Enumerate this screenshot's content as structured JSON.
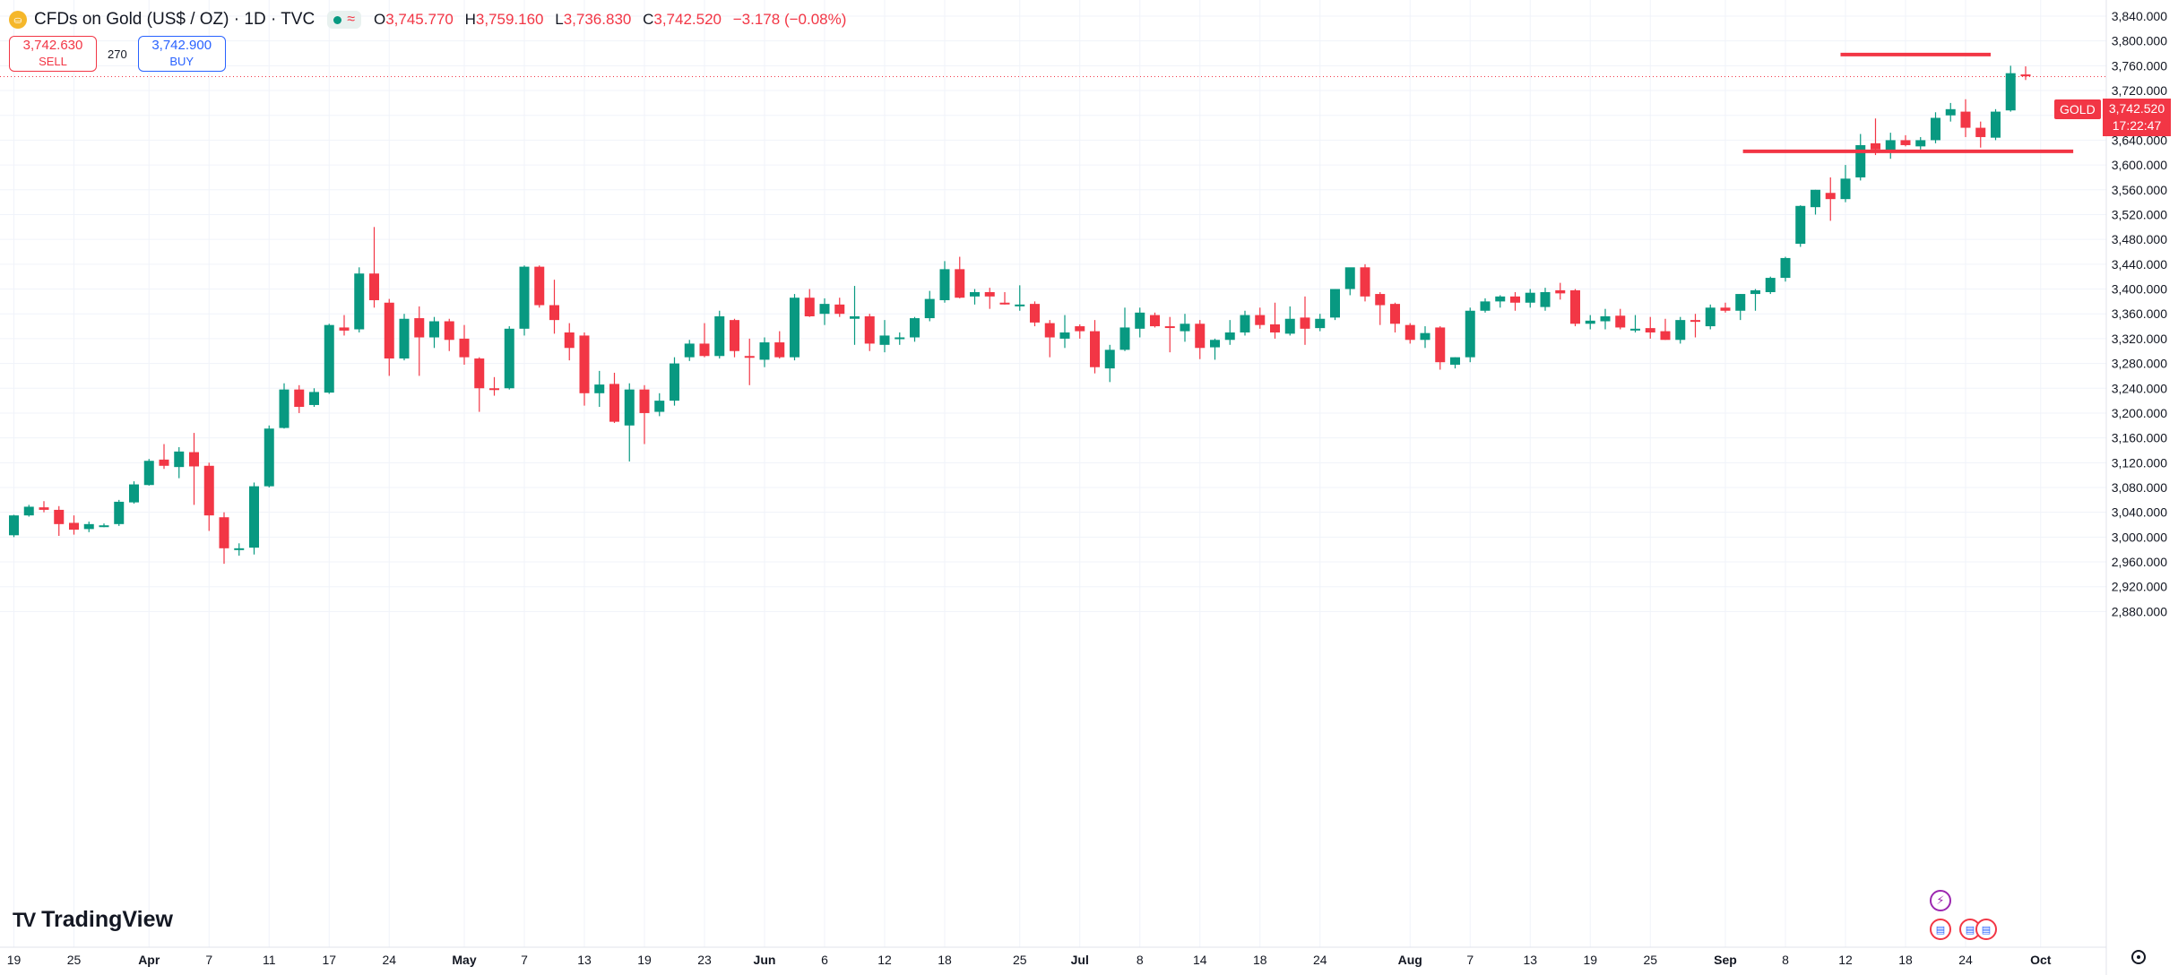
{
  "header": {
    "symbol_title": "CFDs on Gold (US$ / OZ) · 1D · TVC",
    "symbol_icon": "gold-coin-icon",
    "ohlc": {
      "o_label": "O",
      "o": "3,745.770",
      "h_label": "H",
      "h": "3,759.160",
      "l_label": "L",
      "l": "3,736.830",
      "c_label": "C",
      "c": "3,742.520",
      "change": "−3.178 (−0.08%)"
    }
  },
  "trade": {
    "sell_price": "3,742.630",
    "sell_label": "SELL",
    "spread": "270",
    "buy_price": "3,742.900",
    "buy_label": "BUY"
  },
  "price_axis": {
    "symbol_tag": "GOLD",
    "last_price": "3,742.520",
    "countdown": "17:22:47"
  },
  "branding": {
    "logo_text": "TradingView"
  },
  "colors": {
    "up": "#089981",
    "down": "#f23645",
    "accent": "#2962ff"
  },
  "chart_data": {
    "type": "candlestick",
    "title": "CFDs on Gold (US$ / OZ) · 1D · TVC",
    "ylim": [
      2880,
      3860
    ],
    "y_ticks": [
      2880,
      2920,
      2960,
      3000,
      3040,
      3080,
      3120,
      3160,
      3200,
      3240,
      3280,
      3320,
      3360,
      3400,
      3440,
      3480,
      3520,
      3560,
      3600,
      3640,
      3680,
      3720,
      3760,
      3800,
      3840
    ],
    "y_tick_labels": [
      "2,880.000",
      "2,920.000",
      "2,960.000",
      "3,000.000",
      "3,040.000",
      "3,080.000",
      "3,120.000",
      "3,160.000",
      "3,200.000",
      "3,240.000",
      "3,280.000",
      "3,320.000",
      "3,360.000",
      "3,400.000",
      "3,440.000",
      "3,480.000",
      "3,520.000",
      "3,560.000",
      "3,600.000",
      "3,640.000",
      "3,680.000",
      "3,720.000",
      "3,760.000",
      "3,800.000",
      "3,840.000"
    ],
    "x_ticks": [
      {
        "label": "19",
        "bar": 0,
        "bold": false
      },
      {
        "label": "25",
        "bar": 4,
        "bold": false
      },
      {
        "label": "Apr",
        "bar": 9,
        "bold": true
      },
      {
        "label": "7",
        "bar": 13,
        "bold": false
      },
      {
        "label": "11",
        "bar": 17,
        "bold": false
      },
      {
        "label": "17",
        "bar": 21,
        "bold": false
      },
      {
        "label": "24",
        "bar": 25,
        "bold": false
      },
      {
        "label": "May",
        "bar": 30,
        "bold": true
      },
      {
        "label": "7",
        "bar": 34,
        "bold": false
      },
      {
        "label": "13",
        "bar": 38,
        "bold": false
      },
      {
        "label": "19",
        "bar": 42,
        "bold": false
      },
      {
        "label": "23",
        "bar": 46,
        "bold": false
      },
      {
        "label": "Jun",
        "bar": 50,
        "bold": true
      },
      {
        "label": "6",
        "bar": 54,
        "bold": false
      },
      {
        "label": "12",
        "bar": 58,
        "bold": false
      },
      {
        "label": "18",
        "bar": 62,
        "bold": false
      },
      {
        "label": "25",
        "bar": 67,
        "bold": false
      },
      {
        "label": "Jul",
        "bar": 71,
        "bold": true
      },
      {
        "label": "8",
        "bar": 75,
        "bold": false
      },
      {
        "label": "14",
        "bar": 79,
        "bold": false
      },
      {
        "label": "18",
        "bar": 83,
        "bold": false
      },
      {
        "label": "24",
        "bar": 87,
        "bold": false
      },
      {
        "label": "Aug",
        "bar": 93,
        "bold": true
      },
      {
        "label": "7",
        "bar": 97,
        "bold": false
      },
      {
        "label": "13",
        "bar": 101,
        "bold": false
      },
      {
        "label": "19",
        "bar": 105,
        "bold": false
      },
      {
        "label": "25",
        "bar": 109,
        "bold": false
      },
      {
        "label": "Sep",
        "bar": 114,
        "bold": true
      },
      {
        "label": "8",
        "bar": 118,
        "bold": false
      },
      {
        "label": "12",
        "bar": 122,
        "bold": false
      },
      {
        "label": "18",
        "bar": 126,
        "bold": false
      },
      {
        "label": "24",
        "bar": 130,
        "bold": false
      },
      {
        "label": "Oct",
        "bar": 135,
        "bold": true
      }
    ],
    "candles": [
      {
        "o": 3003,
        "h": 3036,
        "l": 3000,
        "c": 3035
      },
      {
        "o": 3035,
        "h": 3052,
        "l": 3033,
        "c": 3049
      },
      {
        "o": 3048,
        "h": 3058,
        "l": 3040,
        "c": 3044
      },
      {
        "o": 3044,
        "h": 3050,
        "l": 3002,
        "c": 3021
      },
      {
        "o": 3023,
        "h": 3035,
        "l": 3004,
        "c": 3012
      },
      {
        "o": 3013,
        "h": 3025,
        "l": 3008,
        "c": 3021
      },
      {
        "o": 3019,
        "h": 3022,
        "l": 3016,
        "c": 3019
      },
      {
        "o": 3021,
        "h": 3060,
        "l": 3018,
        "c": 3057
      },
      {
        "o": 3056,
        "h": 3090,
        "l": 3054,
        "c": 3085
      },
      {
        "o": 3084,
        "h": 3126,
        "l": 3083,
        "c": 3123
      },
      {
        "o": 3125,
        "h": 3150,
        "l": 3110,
        "c": 3115
      },
      {
        "o": 3113,
        "h": 3145,
        "l": 3095,
        "c": 3138
      },
      {
        "o": 3137,
        "h": 3168,
        "l": 3052,
        "c": 3114
      },
      {
        "o": 3115,
        "h": 3120,
        "l": 3010,
        "c": 3035
      },
      {
        "o": 3032,
        "h": 3040,
        "l": 2957,
        "c": 2982
      },
      {
        "o": 2982,
        "h": 2990,
        "l": 2970,
        "c": 2982
      },
      {
        "o": 2983,
        "h": 3088,
        "l": 2972,
        "c": 3082
      },
      {
        "o": 3082,
        "h": 3180,
        "l": 3080,
        "c": 3175
      },
      {
        "o": 3176,
        "h": 3248,
        "l": 3175,
        "c": 3238
      },
      {
        "o": 3238,
        "h": 3245,
        "l": 3200,
        "c": 3210
      },
      {
        "o": 3213,
        "h": 3240,
        "l": 3210,
        "c": 3234
      },
      {
        "o": 3233,
        "h": 3344,
        "l": 3231,
        "c": 3342
      },
      {
        "o": 3338,
        "h": 3358,
        "l": 3325,
        "c": 3333
      },
      {
        "o": 3335,
        "h": 3435,
        "l": 3330,
        "c": 3425
      },
      {
        "o": 3425,
        "h": 3500,
        "l": 3370,
        "c": 3382
      },
      {
        "o": 3378,
        "h": 3384,
        "l": 3260,
        "c": 3288
      },
      {
        "o": 3288,
        "h": 3360,
        "l": 3285,
        "c": 3352
      },
      {
        "o": 3353,
        "h": 3372,
        "l": 3260,
        "c": 3322
      },
      {
        "o": 3322,
        "h": 3355,
        "l": 3305,
        "c": 3348
      },
      {
        "o": 3348,
        "h": 3352,
        "l": 3300,
        "c": 3318
      },
      {
        "o": 3320,
        "h": 3342,
        "l": 3278,
        "c": 3290
      },
      {
        "o": 3288,
        "h": 3290,
        "l": 3202,
        "c": 3240
      },
      {
        "o": 3240,
        "h": 3258,
        "l": 3228,
        "c": 3238
      },
      {
        "o": 3240,
        "h": 3340,
        "l": 3238,
        "c": 3336
      },
      {
        "o": 3336,
        "h": 3438,
        "l": 3325,
        "c": 3436
      },
      {
        "o": 3436,
        "h": 3438,
        "l": 3370,
        "c": 3374
      },
      {
        "o": 3374,
        "h": 3415,
        "l": 3328,
        "c": 3350
      },
      {
        "o": 3330,
        "h": 3345,
        "l": 3285,
        "c": 3305
      },
      {
        "o": 3325,
        "h": 3330,
        "l": 3212,
        "c": 3232
      },
      {
        "o": 3232,
        "h": 3268,
        "l": 3210,
        "c": 3246
      },
      {
        "o": 3247,
        "h": 3265,
        "l": 3184,
        "c": 3186
      },
      {
        "o": 3180,
        "h": 3248,
        "l": 3122,
        "c": 3238
      },
      {
        "o": 3238,
        "h": 3245,
        "l": 3150,
        "c": 3200
      },
      {
        "o": 3202,
        "h": 3232,
        "l": 3195,
        "c": 3220
      },
      {
        "o": 3220,
        "h": 3290,
        "l": 3212,
        "c": 3280
      },
      {
        "o": 3290,
        "h": 3318,
        "l": 3284,
        "c": 3312
      },
      {
        "o": 3312,
        "h": 3345,
        "l": 3290,
        "c": 3292
      },
      {
        "o": 3292,
        "h": 3365,
        "l": 3288,
        "c": 3356
      },
      {
        "o": 3350,
        "h": 3352,
        "l": 3290,
        "c": 3300
      },
      {
        "o": 3292,
        "h": 3320,
        "l": 3245,
        "c": 3290
      },
      {
        "o": 3286,
        "h": 3322,
        "l": 3274,
        "c": 3314
      },
      {
        "o": 3314,
        "h": 3332,
        "l": 3288,
        "c": 3290
      },
      {
        "o": 3290,
        "h": 3392,
        "l": 3285,
        "c": 3386
      },
      {
        "o": 3386,
        "h": 3400,
        "l": 3355,
        "c": 3356
      },
      {
        "o": 3360,
        "h": 3385,
        "l": 3342,
        "c": 3376
      },
      {
        "o": 3375,
        "h": 3386,
        "l": 3355,
        "c": 3360
      },
      {
        "o": 3352,
        "h": 3405,
        "l": 3310,
        "c": 3356
      },
      {
        "o": 3356,
        "h": 3360,
        "l": 3300,
        "c": 3312
      },
      {
        "o": 3310,
        "h": 3350,
        "l": 3298,
        "c": 3325
      },
      {
        "o": 3322,
        "h": 3330,
        "l": 3310,
        "c": 3322
      },
      {
        "o": 3322,
        "h": 3355,
        "l": 3315,
        "c": 3353
      },
      {
        "o": 3353,
        "h": 3397,
        "l": 3348,
        "c": 3384
      },
      {
        "o": 3382,
        "h": 3445,
        "l": 3378,
        "c": 3432
      },
      {
        "o": 3432,
        "h": 3452,
        "l": 3385,
        "c": 3386
      },
      {
        "o": 3388,
        "h": 3400,
        "l": 3375,
        "c": 3395
      },
      {
        "o": 3395,
        "h": 3402,
        "l": 3368,
        "c": 3388
      },
      {
        "o": 3378,
        "h": 3395,
        "l": 3375,
        "c": 3376
      },
      {
        "o": 3375,
        "h": 3406,
        "l": 3365,
        "c": 3375
      },
      {
        "o": 3376,
        "h": 3380,
        "l": 3340,
        "c": 3346
      },
      {
        "o": 3345,
        "h": 3350,
        "l": 3290,
        "c": 3322
      },
      {
        "o": 3320,
        "h": 3358,
        "l": 3305,
        "c": 3330
      },
      {
        "o": 3340,
        "h": 3343,
        "l": 3320,
        "c": 3332
      },
      {
        "o": 3332,
        "h": 3350,
        "l": 3264,
        "c": 3274
      },
      {
        "o": 3272,
        "h": 3310,
        "l": 3250,
        "c": 3302
      },
      {
        "o": 3302,
        "h": 3370,
        "l": 3300,
        "c": 3338
      },
      {
        "o": 3336,
        "h": 3370,
        "l": 3322,
        "c": 3362
      },
      {
        "o": 3358,
        "h": 3362,
        "l": 3338,
        "c": 3340
      },
      {
        "o": 3340,
        "h": 3355,
        "l": 3298,
        "c": 3338
      },
      {
        "o": 3332,
        "h": 3360,
        "l": 3315,
        "c": 3344
      },
      {
        "o": 3344,
        "h": 3350,
        "l": 3287,
        "c": 3305
      },
      {
        "o": 3306,
        "h": 3320,
        "l": 3286,
        "c": 3318
      },
      {
        "o": 3318,
        "h": 3350,
        "l": 3310,
        "c": 3330
      },
      {
        "o": 3330,
        "h": 3365,
        "l": 3325,
        "c": 3358
      },
      {
        "o": 3358,
        "h": 3370,
        "l": 3336,
        "c": 3342
      },
      {
        "o": 3343,
        "h": 3378,
        "l": 3320,
        "c": 3330
      },
      {
        "o": 3328,
        "h": 3372,
        "l": 3325,
        "c": 3352
      },
      {
        "o": 3354,
        "h": 3388,
        "l": 3310,
        "c": 3336
      },
      {
        "o": 3337,
        "h": 3360,
        "l": 3332,
        "c": 3352
      },
      {
        "o": 3354,
        "h": 3400,
        "l": 3350,
        "c": 3400
      },
      {
        "o": 3400,
        "h": 3432,
        "l": 3390,
        "c": 3435
      },
      {
        "o": 3435,
        "h": 3440,
        "l": 3380,
        "c": 3388
      },
      {
        "o": 3392,
        "h": 3395,
        "l": 3342,
        "c": 3374
      },
      {
        "o": 3376,
        "h": 3378,
        "l": 3330,
        "c": 3344
      },
      {
        "o": 3342,
        "h": 3345,
        "l": 3312,
        "c": 3318
      },
      {
        "o": 3318,
        "h": 3340,
        "l": 3305,
        "c": 3329
      },
      {
        "o": 3338,
        "h": 3340,
        "l": 3270,
        "c": 3282
      },
      {
        "o": 3278,
        "h": 3290,
        "l": 3272,
        "c": 3290
      },
      {
        "o": 3290,
        "h": 3370,
        "l": 3282,
        "c": 3365
      },
      {
        "o": 3365,
        "h": 3385,
        "l": 3362,
        "c": 3380
      },
      {
        "o": 3380,
        "h": 3390,
        "l": 3370,
        "c": 3388
      },
      {
        "o": 3388,
        "h": 3395,
        "l": 3365,
        "c": 3378
      },
      {
        "o": 3378,
        "h": 3400,
        "l": 3370,
        "c": 3394
      },
      {
        "o": 3371,
        "h": 3402,
        "l": 3365,
        "c": 3395
      },
      {
        "o": 3398,
        "h": 3410,
        "l": 3383,
        "c": 3393
      },
      {
        "o": 3398,
        "h": 3400,
        "l": 3340,
        "c": 3344
      },
      {
        "o": 3344,
        "h": 3358,
        "l": 3335,
        "c": 3349
      },
      {
        "o": 3348,
        "h": 3368,
        "l": 3335,
        "c": 3356
      },
      {
        "o": 3357,
        "h": 3368,
        "l": 3335,
        "c": 3338
      },
      {
        "o": 3335,
        "h": 3358,
        "l": 3330,
        "c": 3336
      },
      {
        "o": 3337,
        "h": 3355,
        "l": 3320,
        "c": 3330
      },
      {
        "o": 3332,
        "h": 3352,
        "l": 3318,
        "c": 3318
      },
      {
        "o": 3318,
        "h": 3355,
        "l": 3312,
        "c": 3350
      },
      {
        "o": 3350,
        "h": 3360,
        "l": 3322,
        "c": 3348
      },
      {
        "o": 3340,
        "h": 3375,
        "l": 3335,
        "c": 3370
      },
      {
        "o": 3370,
        "h": 3378,
        "l": 3362,
        "c": 3365
      },
      {
        "o": 3365,
        "h": 3392,
        "l": 3350,
        "c": 3392
      },
      {
        "o": 3392,
        "h": 3400,
        "l": 3365,
        "c": 3398
      },
      {
        "o": 3395,
        "h": 3420,
        "l": 3392,
        "c": 3418
      },
      {
        "o": 3418,
        "h": 3452,
        "l": 3412,
        "c": 3450
      },
      {
        "o": 3473,
        "h": 3535,
        "l": 3468,
        "c": 3534
      },
      {
        "o": 3532,
        "h": 3560,
        "l": 3520,
        "c": 3560
      },
      {
        "o": 3555,
        "h": 3580,
        "l": 3510,
        "c": 3545
      },
      {
        "o": 3545,
        "h": 3600,
        "l": 3540,
        "c": 3578
      },
      {
        "o": 3580,
        "h": 3650,
        "l": 3575,
        "c": 3632
      },
      {
        "o": 3635,
        "h": 3675,
        "l": 3616,
        "c": 3625
      },
      {
        "o": 3622,
        "h": 3652,
        "l": 3610,
        "c": 3640
      },
      {
        "o": 3640,
        "h": 3648,
        "l": 3630,
        "c": 3632
      },
      {
        "o": 3630,
        "h": 3645,
        "l": 3625,
        "c": 3640
      },
      {
        "o": 3640,
        "h": 3685,
        "l": 3635,
        "c": 3676
      },
      {
        "o": 3680,
        "h": 3700,
        "l": 3670,
        "c": 3690
      },
      {
        "o": 3686,
        "h": 3706,
        "l": 3645,
        "c": 3660
      },
      {
        "o": 3660,
        "h": 3670,
        "l": 3628,
        "c": 3645
      },
      {
        "o": 3644,
        "h": 3690,
        "l": 3640,
        "c": 3686
      },
      {
        "o": 3688,
        "h": 3760,
        "l": 3686,
        "c": 3748
      },
      {
        "o": 3746,
        "h": 3759,
        "l": 3737,
        "c": 3743
      }
    ],
    "horizontal_lines": [
      {
        "y": 3778,
        "start_bar": 122,
        "end_bar": 132
      },
      {
        "y": 3622,
        "start_bar": 115.5,
        "end_bar": 137.5
      }
    ],
    "last_price": 3742.52,
    "grid": true,
    "legend_placement": "top-left"
  }
}
